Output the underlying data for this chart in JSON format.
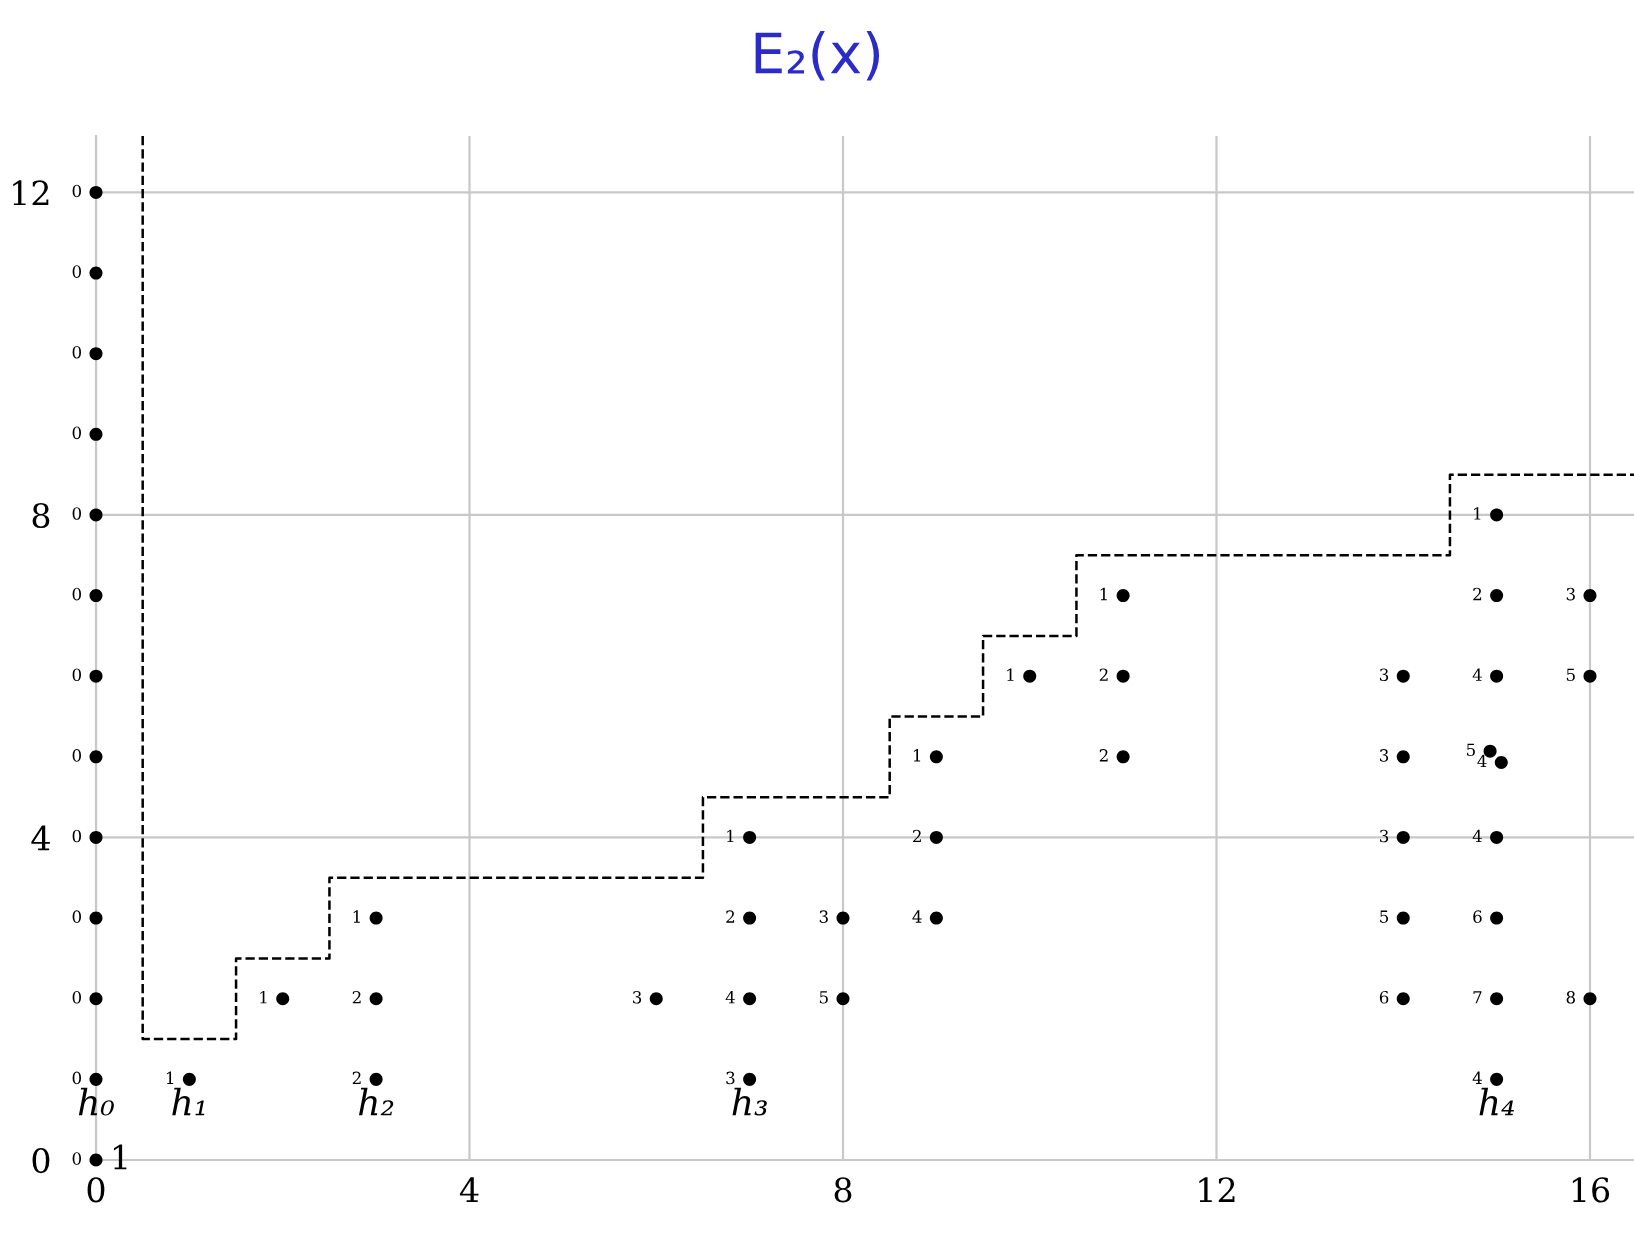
{
  "chart_data": {
    "type": "scatter",
    "title": "E₂(x)",
    "xlim": [
      0,
      16.5
    ],
    "ylim": [
      0,
      12.7
    ],
    "xticks": [
      0,
      4,
      8,
      12,
      16
    ],
    "yticks": [
      0,
      4,
      8,
      12
    ],
    "grid": true,
    "marker": "circle",
    "series": [
      {
        "color": "#000000",
        "x": [
          0,
          0,
          0,
          0,
          0,
          0,
          0,
          0,
          0,
          0,
          0,
          0,
          0,
          1,
          2,
          3,
          3,
          3,
          6,
          7,
          7,
          7,
          7,
          8,
          8,
          9,
          9,
          9,
          10,
          11,
          11,
          11,
          14,
          14,
          14,
          14,
          14,
          15,
          15,
          15,
          14.93,
          15.05,
          15,
          15,
          15,
          15,
          16,
          16,
          16
        ],
        "values": [
          0,
          1,
          2,
          3,
          4,
          5,
          6,
          7,
          8,
          9,
          10,
          11,
          12,
          1,
          2,
          3,
          2,
          1,
          2,
          4,
          3,
          2,
          1,
          3,
          2,
          5,
          4,
          3,
          6,
          7,
          6,
          5,
          6,
          5,
          4,
          3,
          2,
          8,
          7,
          6,
          5.07,
          4.93,
          4,
          3,
          2,
          1,
          7,
          6,
          2
        ]
      },
      {
        "type": "line",
        "color": "#000000",
        "line_style": "dashed",
        "marker": "none",
        "x": [
          0.5,
          0.5,
          1.5,
          1.5,
          2.5,
          2.5,
          6.5,
          6.5,
          8.5,
          8.5,
          9.5,
          9.5,
          10.5,
          10.5,
          14.5,
          14.5,
          16.5
        ],
        "values": [
          12.7,
          1.5,
          1.5,
          2.5,
          2.5,
          3.5,
          3.5,
          4.5,
          4.5,
          5.5,
          5.5,
          6.5,
          6.5,
          7.5,
          7.5,
          8.5,
          8.5
        ]
      }
    ],
    "annotations": [
      {
        "text": "0",
        "x": 0,
        "y": 0
      },
      {
        "text": "0",
        "x": 0,
        "y": 1
      },
      {
        "text": "0",
        "x": 0,
        "y": 2
      },
      {
        "text": "0",
        "x": 0,
        "y": 3
      },
      {
        "text": "0",
        "x": 0,
        "y": 4
      },
      {
        "text": "0",
        "x": 0,
        "y": 5
      },
      {
        "text": "0",
        "x": 0,
        "y": 6
      },
      {
        "text": "0",
        "x": 0,
        "y": 7
      },
      {
        "text": "0",
        "x": 0,
        "y": 8
      },
      {
        "text": "0",
        "x": 0,
        "y": 9
      },
      {
        "text": "0",
        "x": 0,
        "y": 10
      },
      {
        "text": "0",
        "x": 0,
        "y": 11
      },
      {
        "text": "0",
        "x": 0,
        "y": 12
      },
      {
        "text": "1",
        "x": 1,
        "y": 1
      },
      {
        "text": "1",
        "x": 2,
        "y": 2
      },
      {
        "text": "1",
        "x": 3,
        "y": 3
      },
      {
        "text": "2",
        "x": 3,
        "y": 2
      },
      {
        "text": "2",
        "x": 3,
        "y": 1
      },
      {
        "text": "3",
        "x": 6,
        "y": 2
      },
      {
        "text": "1",
        "x": 7,
        "y": 4
      },
      {
        "text": "2",
        "x": 7,
        "y": 3
      },
      {
        "text": "4",
        "x": 7,
        "y": 2
      },
      {
        "text": "3",
        "x": 7,
        "y": 1
      },
      {
        "text": "3",
        "x": 8,
        "y": 3
      },
      {
        "text": "5",
        "x": 8,
        "y": 2
      },
      {
        "text": "1",
        "x": 9,
        "y": 5
      },
      {
        "text": "2",
        "x": 9,
        "y": 4
      },
      {
        "text": "4",
        "x": 9,
        "y": 3
      },
      {
        "text": "1",
        "x": 10,
        "y": 6
      },
      {
        "text": "1",
        "x": 11,
        "y": 7
      },
      {
        "text": "2",
        "x": 11,
        "y": 6
      },
      {
        "text": "2",
        "x": 11,
        "y": 5
      },
      {
        "text": "3",
        "x": 14,
        "y": 6
      },
      {
        "text": "3",
        "x": 14,
        "y": 5
      },
      {
        "text": "3",
        "x": 14,
        "y": 4
      },
      {
        "text": "5",
        "x": 14,
        "y": 3
      },
      {
        "text": "6",
        "x": 14,
        "y": 2
      },
      {
        "text": "1",
        "x": 15,
        "y": 8
      },
      {
        "text": "2",
        "x": 15,
        "y": 7
      },
      {
        "text": "4",
        "x": 15,
        "y": 6
      },
      {
        "text": "5",
        "x": 14.93,
        "y": 5.07
      },
      {
        "text": "4",
        "x": 15.05,
        "y": 4.93
      },
      {
        "text": "4",
        "x": 15,
        "y": 4
      },
      {
        "text": "6",
        "x": 15,
        "y": 3
      },
      {
        "text": "7",
        "x": 15,
        "y": 2
      },
      {
        "text": "4",
        "x": 15,
        "y": 1
      },
      {
        "text": "3",
        "x": 16,
        "y": 7
      },
      {
        "text": "5",
        "x": 16,
        "y": 6
      },
      {
        "text": "8",
        "x": 16,
        "y": 2
      },
      {
        "text": "1",
        "x": 0,
        "y": 0
      },
      {
        "text": "h₀",
        "x": 0,
        "y": 1
      },
      {
        "text": "h₁",
        "x": 1,
        "y": 1
      },
      {
        "text": "h₂",
        "x": 3,
        "y": 1
      },
      {
        "text": "h₃",
        "x": 7,
        "y": 1
      },
      {
        "text": "h₄",
        "x": 15,
        "y": 1
      }
    ]
  }
}
